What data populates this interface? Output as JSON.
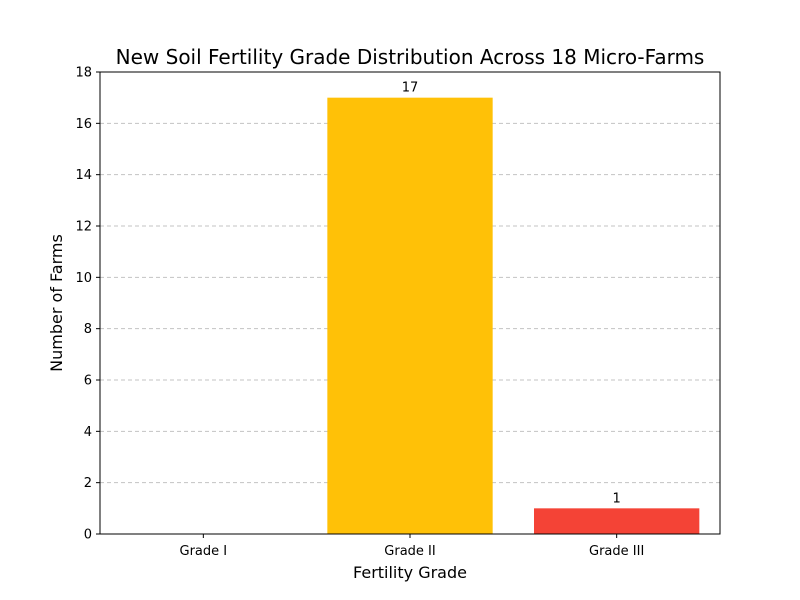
{
  "chart_data": {
    "type": "bar",
    "title": "New Soil Fertility Grade Distribution Across 18 Micro-Farms",
    "xlabel": "Fertility Grade",
    "ylabel": "Number of Farms",
    "categories": [
      "Grade I",
      "Grade II",
      "Grade III"
    ],
    "values": [
      0,
      17,
      1
    ],
    "data_labels": [
      "",
      "17",
      "1"
    ],
    "colors": [
      "#4CAF50",
      "#FFC107",
      "#F44336"
    ],
    "ylim": [
      0,
      18
    ],
    "yticks": [
      0,
      2,
      4,
      6,
      8,
      10,
      12,
      14,
      16,
      18
    ],
    "grid": "y-dashed",
    "legend": "none"
  }
}
